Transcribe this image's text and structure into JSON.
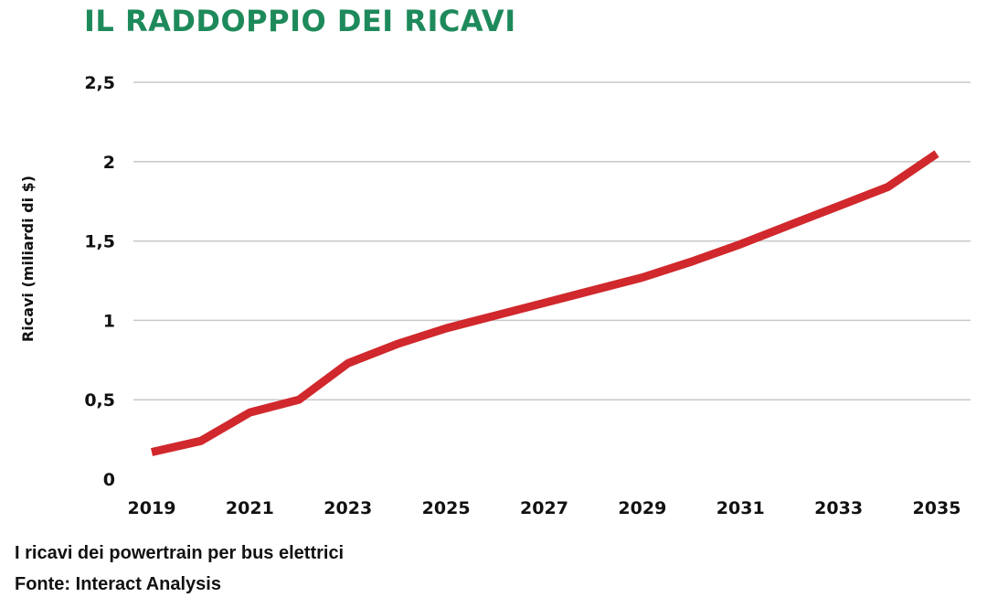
{
  "chart_data": {
    "type": "line",
    "title": "IL RADDOPPIO DEI RICAVI",
    "ylabel": "Ricavi (miliardi di $)",
    "xlabel": "",
    "x": [
      2019,
      2020,
      2021,
      2022,
      2023,
      2024,
      2025,
      2026,
      2027,
      2028,
      2029,
      2030,
      2031,
      2032,
      2033,
      2034,
      2035
    ],
    "series": [
      {
        "values": [
          0.17,
          0.24,
          0.42,
          0.5,
          0.73,
          0.85,
          0.95,
          1.03,
          1.11,
          1.19,
          1.27,
          1.37,
          1.48,
          1.6,
          1.72,
          1.84,
          2.05
        ]
      }
    ],
    "x_ticks": [
      "2019",
      "2021",
      "2023",
      "2025",
      "2027",
      "2029",
      "2031",
      "2033",
      "2035"
    ],
    "y_ticks": [
      {
        "value": 0,
        "label": "0"
      },
      {
        "value": 0.5,
        "label": "0,5"
      },
      {
        "value": 1,
        "label": "1"
      },
      {
        "value": 1.5,
        "label": "1,5"
      },
      {
        "value": 2,
        "label": "2"
      },
      {
        "value": 2.5,
        "label": "2,5"
      }
    ],
    "xlim": [
      2019,
      2035
    ],
    "ylim": [
      0,
      2.5
    ],
    "grid": "horizontal",
    "line_color": "#d0282c",
    "title_color": "#1e8a5b"
  },
  "footer": {
    "caption": "I ricavi dei powertrain per bus elettrici",
    "source": "Fonte: Interact Analysis"
  }
}
